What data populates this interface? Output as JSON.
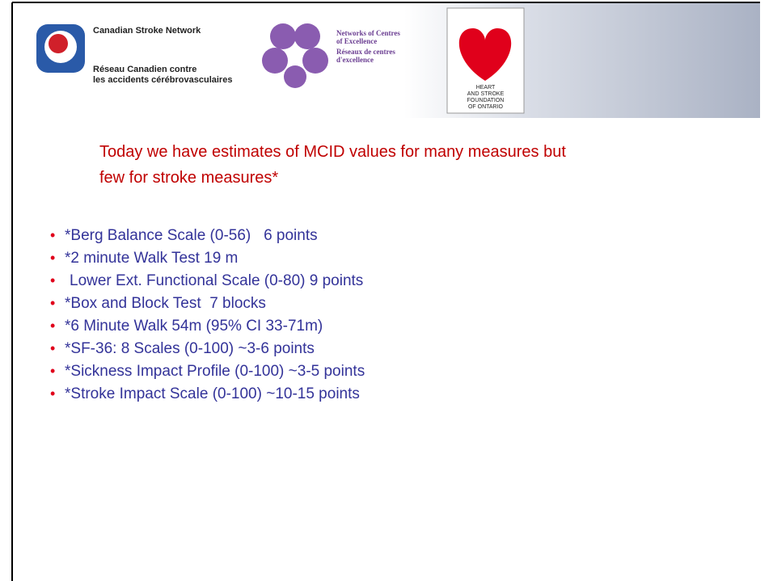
{
  "header": {
    "csn": {
      "name": "Canadian Stroke Network",
      "lines": [
        "Réseau Canadien contre",
        "les accidents cérébrovasculaires"
      ]
    },
    "nce": {
      "lines": [
        "Networks of Centres",
        "of Excellence",
        "Réseaux de centres",
        "d'excellence"
      ]
    },
    "hsf": {
      "lines": [
        "HEART",
        "AND STROKE",
        "FOUNDATION",
        "OF ONTARIO"
      ]
    }
  },
  "heading": {
    "lines": [
      "Today we have estimates of MCID values for many measures but",
      "few for stroke measures*"
    ]
  },
  "bullets": [
    "*Berg Balance Scale (0-56)   6 points",
    "*2 minute Walk Test 19 m",
    "Lower Ext. Functional Scale (0-80) 9 points",
    "*Box and Block Test  7 blocks",
    "*6 Minute Walk 54m (95% CI 33-71m)",
    "*SF-36: 8 Scales (0-100) ~3-6 points",
    "*Sickness Impact Profile (0-100) ~3-5 points",
    "*Stroke Impact Scale (0-100) ~10-15 points"
  ]
}
